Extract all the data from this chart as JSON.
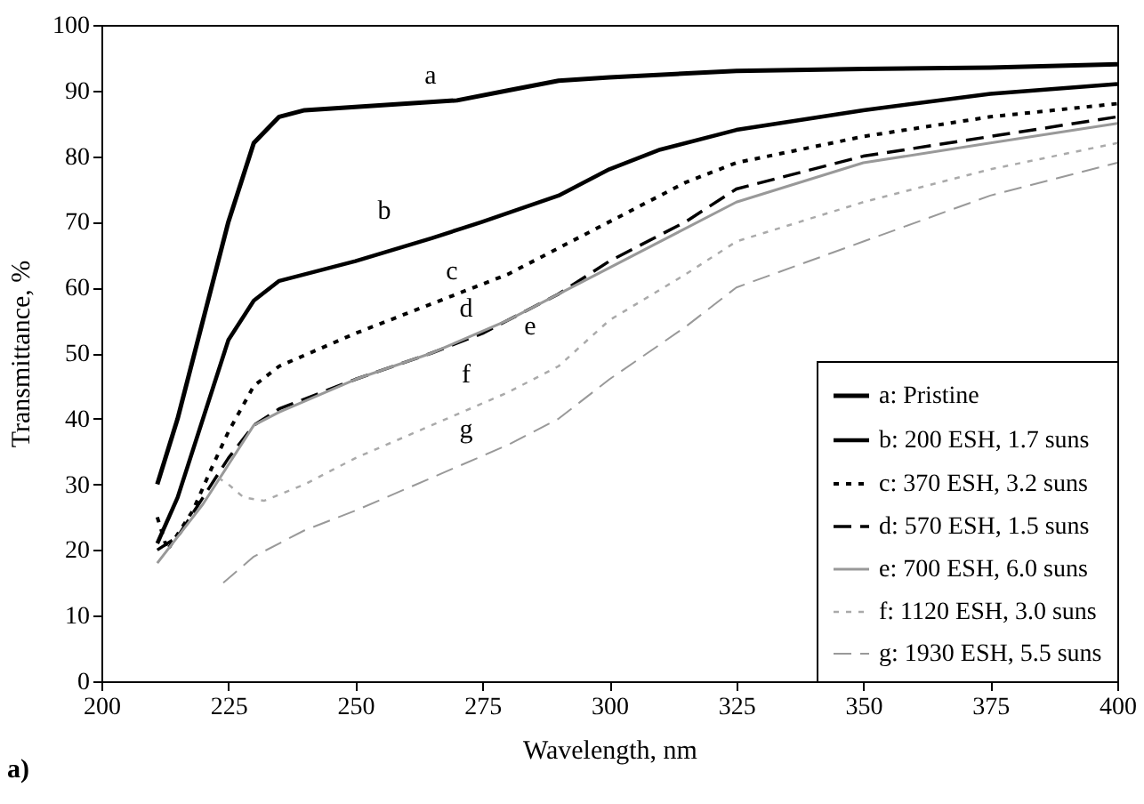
{
  "chart_data": {
    "type": "line",
    "xlabel": "Wavelength, nm",
    "ylabel": "Transmittance, %",
    "xlim": [
      200,
      400
    ],
    "ylim": [
      0,
      100
    ],
    "xticks": [
      200,
      225,
      250,
      275,
      300,
      325,
      350,
      375,
      400
    ],
    "yticks": [
      0,
      10,
      20,
      30,
      40,
      50,
      60,
      70,
      80,
      90,
      100
    ],
    "grid": false,
    "legend": "bottom right",
    "marker": "none",
    "series": [
      {
        "name": "a: Pristine",
        "color": "#000000",
        "line_style": "solid",
        "x": [
          211,
          215,
          220,
          225,
          230,
          235,
          240,
          250,
          260,
          270,
          280,
          290,
          300,
          325,
          350,
          375,
          400
        ],
        "values": [
          30,
          40,
          55,
          70,
          82,
          86,
          87,
          87.5,
          88,
          88.5,
          90,
          91.5,
          92,
          93,
          93.3,
          93.5,
          94
        ]
      },
      {
        "name": "b: 200 ESH, 1.7 suns",
        "color": "#000000",
        "line_style": "solid",
        "x": [
          211,
          215,
          220,
          225,
          230,
          235,
          250,
          265,
          275,
          290,
          300,
          310,
          325,
          350,
          375,
          400
        ],
        "values": [
          21,
          28,
          40,
          52,
          58,
          61,
          64,
          67.5,
          70,
          74,
          78,
          81,
          84,
          87,
          89.5,
          91
        ]
      },
      {
        "name": "c: 370 ESH, 3.2 suns",
        "color": "#000000",
        "line_style": "dotted",
        "x": [
          211,
          213,
          218,
          222,
          225,
          230,
          235,
          250,
          260,
          270,
          280,
          290,
          300,
          315,
          325,
          350,
          375,
          400
        ],
        "values": [
          25,
          20,
          26,
          33,
          38,
          45,
          48,
          53,
          56,
          59,
          62,
          66,
          70,
          76,
          79,
          83,
          86,
          88
        ]
      },
      {
        "name": "d: 570 ESH, 1.5 suns",
        "color": "#000000",
        "line_style": "dashed",
        "x": [
          211,
          215,
          220,
          225,
          230,
          235,
          250,
          265,
          275,
          290,
          300,
          315,
          325,
          350,
          375,
          400
        ],
        "values": [
          20,
          22,
          28,
          34,
          39,
          41.5,
          46,
          50,
          53,
          59,
          64,
          70,
          75,
          80,
          83,
          86
        ]
      },
      {
        "name": "e: 700 ESH, 6.0 suns",
        "color": "#999999",
        "line_style": "solid",
        "x": [
          211,
          215,
          220,
          225,
          230,
          235,
          250,
          265,
          280,
          300,
          325,
          350,
          375,
          400
        ],
        "values": [
          18,
          22,
          27,
          33,
          39,
          41,
          46,
          50,
          55,
          63,
          73,
          79,
          82,
          85
        ]
      },
      {
        "name": "f: 1120 ESH, 3.0 suns",
        "color": "#aaaaaa",
        "line_style": "dotted",
        "x": [
          223,
          225,
          228,
          232,
          240,
          250,
          265,
          280,
          290,
          300,
          315,
          325,
          350,
          375,
          400
        ],
        "values": [
          31,
          30,
          28,
          27.5,
          30,
          34,
          39,
          44,
          48,
          55,
          62,
          67,
          73,
          78,
          82
        ]
      },
      {
        "name": "g: 1930 ESH, 5.5 suns",
        "color": "#999999",
        "line_style": "dashed",
        "x": [
          224,
          230,
          240,
          250,
          265,
          280,
          290,
          300,
          315,
          325,
          350,
          375,
          400
        ],
        "values": [
          15,
          19,
          23,
          26,
          31,
          36,
          40,
          46,
          54,
          60,
          67,
          74,
          79
        ]
      }
    ],
    "annotations": [
      "a",
      "b",
      "c",
      "d",
      "e",
      "f",
      "g",
      "a)"
    ]
  }
}
